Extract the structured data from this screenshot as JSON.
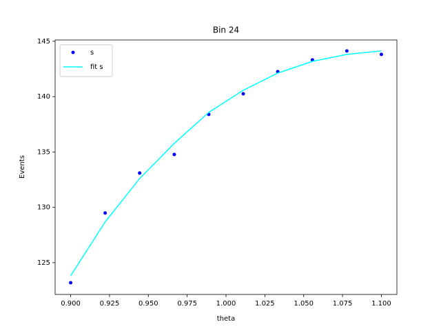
{
  "chart_data": {
    "type": "line",
    "title": "Bin 24",
    "x_label": "theta",
    "y_label": "Events",
    "x": [
      0.9,
      0.9222,
      0.9444,
      0.9667,
      0.9889,
      1.0111,
      1.0333,
      1.0556,
      1.0778,
      1.1
    ],
    "series": [
      {
        "name": "s",
        "color": "#0000ff",
        "style": "dots",
        "values": [
          123.19,
          129.49,
          133.1,
          134.78,
          138.4,
          140.26,
          142.26,
          143.32,
          144.13,
          143.82
        ]
      },
      {
        "name": "fit s",
        "color": "#00ffff",
        "style": "line",
        "values": [
          123.82,
          128.68,
          132.6,
          135.78,
          138.58,
          140.58,
          142.13,
          143.19,
          143.82,
          144.13
        ]
      }
    ],
    "xlim": [
      0.89,
      1.11
    ],
    "xticks": [
      {
        "value": 0.9,
        "label": "0.900"
      },
      {
        "value": 0.925,
        "label": "0.925"
      },
      {
        "value": 0.95,
        "label": "0.950"
      },
      {
        "value": 0.975,
        "label": "0.975"
      },
      {
        "value": 1.0,
        "label": "1.000"
      },
      {
        "value": 1.025,
        "label": "1.025"
      },
      {
        "value": 1.05,
        "label": "1.050"
      },
      {
        "value": 1.075,
        "label": "1.075"
      },
      {
        "value": 1.1,
        "label": "1.100"
      }
    ],
    "ylim": [
      122.13,
      145.12
    ],
    "yticks": [
      125,
      130,
      135,
      140,
      145
    ],
    "legend": "upper-left"
  }
}
